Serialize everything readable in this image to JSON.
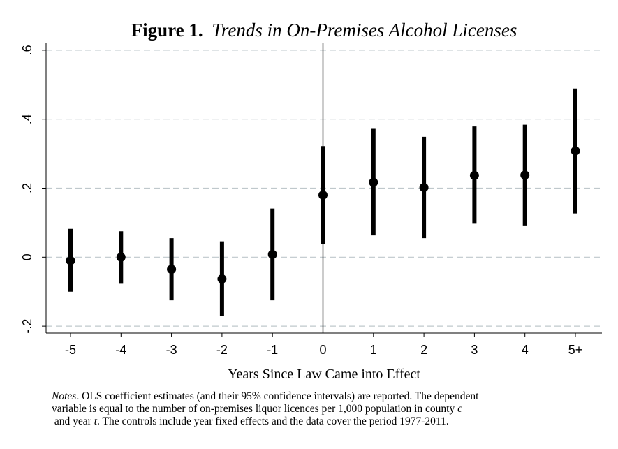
{
  "chart_data": {
    "type": "scatter",
    "title_bold": "Figure 1.",
    "title_italic": "Trends in On-Premises Alcohol Licenses",
    "xlabel": "Years Since Law Came into Effect",
    "ylabel": "",
    "categories": [
      "-5",
      "-4",
      "-3",
      "-2",
      "-1",
      "0",
      "1",
      "2",
      "3",
      "4",
      "5+"
    ],
    "series": [
      {
        "values": [
          -0.01,
          0.0,
          -0.035,
          -0.063,
          0.008,
          0.18,
          0.217,
          0.202,
          0.237,
          0.238,
          0.308
        ],
        "ci_low": [
          -0.1,
          -0.075,
          -0.125,
          -0.17,
          -0.125,
          0.037,
          0.063,
          0.055,
          0.097,
          0.092,
          0.127
        ],
        "ci_high": [
          0.082,
          0.075,
          0.055,
          0.046,
          0.141,
          0.322,
          0.372,
          0.349,
          0.379,
          0.384,
          0.489
        ]
      }
    ],
    "yticks": [
      -0.2,
      0,
      0.2,
      0.4,
      0.6
    ],
    "ytick_labels": [
      "-.2",
      "0",
      ".2",
      ".4",
      ".6"
    ],
    "ylim": [
      -0.22,
      0.62
    ],
    "vline_at": "0",
    "grid": "horizontal dashed",
    "marker_color": "#000000",
    "grid_color": "#bfc8cc"
  },
  "notes": {
    "label": "Notes",
    "line1": ". OLS coefficient estimates (and their 95% confidence intervals) are reported. The dependent",
    "line2_a": "variable is equal to the number of on-premises liquor licences per 1,000 population in county ",
    "line2_var": "c",
    "line3_a": " and year ",
    "line3_var": "t",
    "line3_b": ". The controls include year fixed effects and the data cover the period 1977-2011."
  }
}
